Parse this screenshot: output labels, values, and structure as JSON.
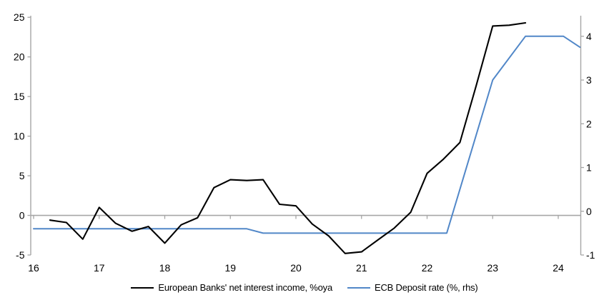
{
  "chart_data": {
    "type": "line",
    "title": "",
    "background": "#FFFFFF",
    "axis_color": "#A6A6A6",
    "text_color": "#000000",
    "grid": false,
    "legend_position": "bottom-center",
    "x_axis": {
      "ticks": [
        16,
        17,
        18,
        19,
        20,
        21,
        22,
        23,
        24
      ],
      "domain": [
        16,
        24.34
      ]
    },
    "left_axis": {
      "ticks": [
        -5,
        0,
        5,
        10,
        15,
        20,
        25
      ],
      "domain": [
        -5,
        25.2
      ]
    },
    "right_axis": {
      "ticks": [
        -1,
        0,
        1,
        2,
        3,
        4
      ],
      "domain": [
        -1,
        4.47
      ]
    },
    "series": [
      {
        "name": "European Banks' net interest income, %oya",
        "axis": "left",
        "color": "#000000",
        "x": [
          16.25,
          16.5,
          16.75,
          17,
          17.25,
          17.5,
          17.75,
          18,
          18.25,
          18.5,
          18.75,
          19,
          19.25,
          19.5,
          19.75,
          20,
          20.25,
          20.5,
          20.75,
          21,
          21.25,
          21.5,
          21.75,
          22,
          22.25,
          22.5,
          22.75,
          23,
          23.25,
          23.5
        ],
        "y": [
          -0.6,
          -0.9,
          -3.0,
          1.0,
          -1.0,
          -2.0,
          -1.4,
          -3.5,
          -1.2,
          -0.3,
          3.5,
          4.5,
          4.4,
          4.5,
          1.4,
          1.2,
          -1.1,
          -2.6,
          -4.8,
          -4.6,
          -3.1,
          -1.6,
          0.4,
          5.3,
          7.1,
          9.2,
          16.4,
          23.9,
          24.0,
          24.3
        ]
      },
      {
        "name": "ECB Deposit rate (%, rhs)",
        "axis": "right",
        "color": "#5187C8",
        "x": [
          16.0,
          19.25,
          19.5,
          22.3,
          23.0,
          23.5,
          24.08,
          24.33
        ],
        "y": [
          -0.4,
          -0.4,
          -0.5,
          -0.5,
          3.0,
          4.0,
          4.0,
          3.75
        ]
      }
    ],
    "legend": [
      {
        "label": "European Banks' net interest income, %oya",
        "color": "#000000"
      },
      {
        "label": "ECB Deposit rate (%, rhs)",
        "color": "#5187C8"
      }
    ]
  }
}
